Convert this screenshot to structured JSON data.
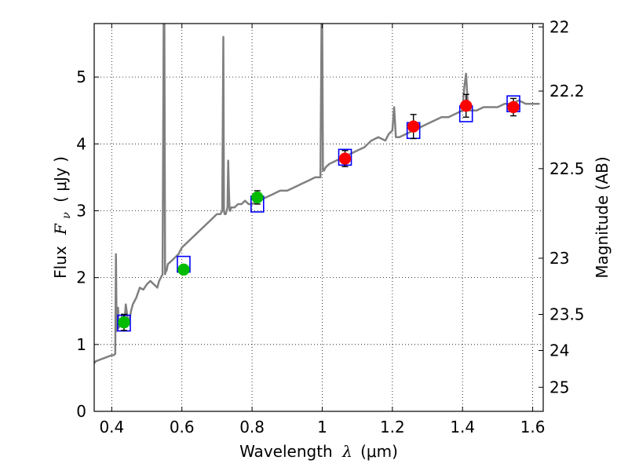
{
  "chart_data": {
    "type": "scatter",
    "xlim": [
      0.35,
      1.63
    ],
    "ylim": [
      0,
      5.8
    ],
    "grid": true,
    "grid_style": "dotted",
    "x_ticks": [
      0.4,
      0.6,
      0.8,
      1.0,
      1.2,
      1.4,
      1.6
    ],
    "x_tick_labels": [
      "0.4",
      "0.6",
      "0.8",
      "1",
      "1.2",
      "1.4",
      "1.6"
    ],
    "y_ticks": [
      0,
      1,
      2,
      3,
      4,
      5
    ],
    "y_tick_labels": [
      "0",
      "1",
      "2",
      "3",
      "4",
      "5"
    ],
    "xlabel_text": "Wavelength",
    "xlabel_symbol": "λ",
    "xlabel_unit": "(μm)",
    "ylabel_text": "Flux",
    "ylabel_symbol": "F",
    "ylabel_sub": "ν",
    "ylabel_unit": "( μJy )",
    "y2label": "Magnitude (AB)",
    "y2_ticks": [
      {
        "label": "22",
        "flux": 5.75
      },
      {
        "label": "22.2",
        "flux": 4.79
      },
      {
        "label": "22.5",
        "flux": 3.63
      },
      {
        "label": "23",
        "flux": 2.29
      },
      {
        "label": "23.5",
        "flux": 1.45
      },
      {
        "label": "24",
        "flux": 0.91
      },
      {
        "label": "25",
        "flux": 0.36
      }
    ],
    "series": [
      {
        "kind": "model_sed",
        "color": "#808080",
        "x": [
          0.35,
          0.355,
          0.36,
          0.37,
          0.38,
          0.39,
          0.4,
          0.405,
          0.41,
          0.412,
          0.414,
          0.416,
          0.418,
          0.42,
          0.425,
          0.43,
          0.435,
          0.44,
          0.445,
          0.45,
          0.455,
          0.46,
          0.465,
          0.47,
          0.48,
          0.49,
          0.5,
          0.51,
          0.52,
          0.53,
          0.535,
          0.54,
          0.545,
          0.548,
          0.55,
          0.552,
          0.554,
          0.556,
          0.56,
          0.57,
          0.58,
          0.59,
          0.6,
          0.61,
          0.62,
          0.63,
          0.64,
          0.65,
          0.66,
          0.67,
          0.68,
          0.69,
          0.7,
          0.71,
          0.715,
          0.718,
          0.72,
          0.722,
          0.725,
          0.73,
          0.732,
          0.734,
          0.736,
          0.738,
          0.74,
          0.75,
          0.76,
          0.77,
          0.78,
          0.79,
          0.8,
          0.82,
          0.84,
          0.86,
          0.88,
          0.9,
          0.92,
          0.94,
          0.96,
          0.98,
          0.99,
          0.995,
          0.998,
          1.0,
          1.002,
          1.005,
          1.01,
          1.02,
          1.04,
          1.06,
          1.08,
          1.1,
          1.12,
          1.14,
          1.16,
          1.18,
          1.19,
          1.2,
          1.205,
          1.21,
          1.22,
          1.24,
          1.26,
          1.28,
          1.3,
          1.32,
          1.34,
          1.36,
          1.38,
          1.4,
          1.405,
          1.41,
          1.415,
          1.42,
          1.44,
          1.46,
          1.48,
          1.5,
          1.52,
          1.54,
          1.56,
          1.58,
          1.6,
          1.62
        ],
        "y": [
          0.72,
          0.75,
          0.76,
          0.78,
          0.8,
          0.82,
          0.84,
          0.84,
          0.86,
          2.35,
          1.2,
          1.5,
          1.55,
          1.25,
          1.3,
          1.45,
          1.25,
          1.6,
          1.4,
          1.35,
          1.5,
          1.6,
          1.65,
          1.7,
          1.85,
          1.82,
          1.9,
          1.95,
          1.9,
          1.85,
          1.95,
          2.0,
          2.05,
          5.8,
          5.8,
          2.05,
          2.1,
          2.1,
          2.2,
          2.25,
          2.3,
          2.35,
          2.45,
          2.5,
          2.55,
          2.6,
          2.65,
          2.7,
          2.75,
          2.8,
          2.85,
          2.9,
          2.95,
          2.95,
          3.0,
          5.6,
          3.0,
          2.95,
          2.95,
          3.05,
          3.75,
          3.3,
          3.0,
          3.0,
          3.05,
          3.05,
          3.1,
          3.1,
          3.15,
          3.1,
          3.1,
          3.15,
          3.2,
          3.25,
          3.3,
          3.3,
          3.35,
          3.4,
          3.45,
          3.5,
          3.5,
          3.5,
          5.8,
          5.8,
          3.6,
          3.6,
          3.65,
          3.7,
          3.75,
          3.8,
          3.85,
          3.9,
          3.95,
          4.05,
          4.1,
          4.05,
          4.15,
          4.2,
          4.55,
          4.1,
          4.1,
          4.15,
          4.2,
          4.25,
          4.3,
          4.35,
          4.4,
          4.4,
          4.45,
          4.5,
          4.85,
          5.05,
          4.6,
          4.5,
          4.5,
          4.55,
          4.55,
          4.55,
          4.6,
          4.6,
          4.65,
          4.6,
          4.6,
          4.6
        ]
      },
      {
        "kind": "model_photometry",
        "marker": "square",
        "color": "#0000ff",
        "x": [
          0.435,
          0.605,
          0.815,
          1.065,
          1.26,
          1.41,
          1.545
        ],
        "y": [
          1.32,
          2.2,
          3.1,
          3.8,
          4.2,
          4.45,
          4.6
        ]
      },
      {
        "kind": "observed_optical",
        "marker": "circle",
        "color": "#00bb00",
        "x": [
          0.435,
          0.605,
          0.815
        ],
        "y": [
          1.33,
          2.12,
          3.2
        ],
        "yerr": [
          0.12,
          0.06,
          0.1
        ]
      },
      {
        "kind": "observed_nir",
        "marker": "circle",
        "color": "#ff0000",
        "x": [
          1.065,
          1.26,
          1.41,
          1.545
        ],
        "y": [
          3.78,
          4.26,
          4.57,
          4.55
        ],
        "yerr": [
          0.12,
          0.18,
          0.17,
          0.13
        ]
      }
    ]
  }
}
